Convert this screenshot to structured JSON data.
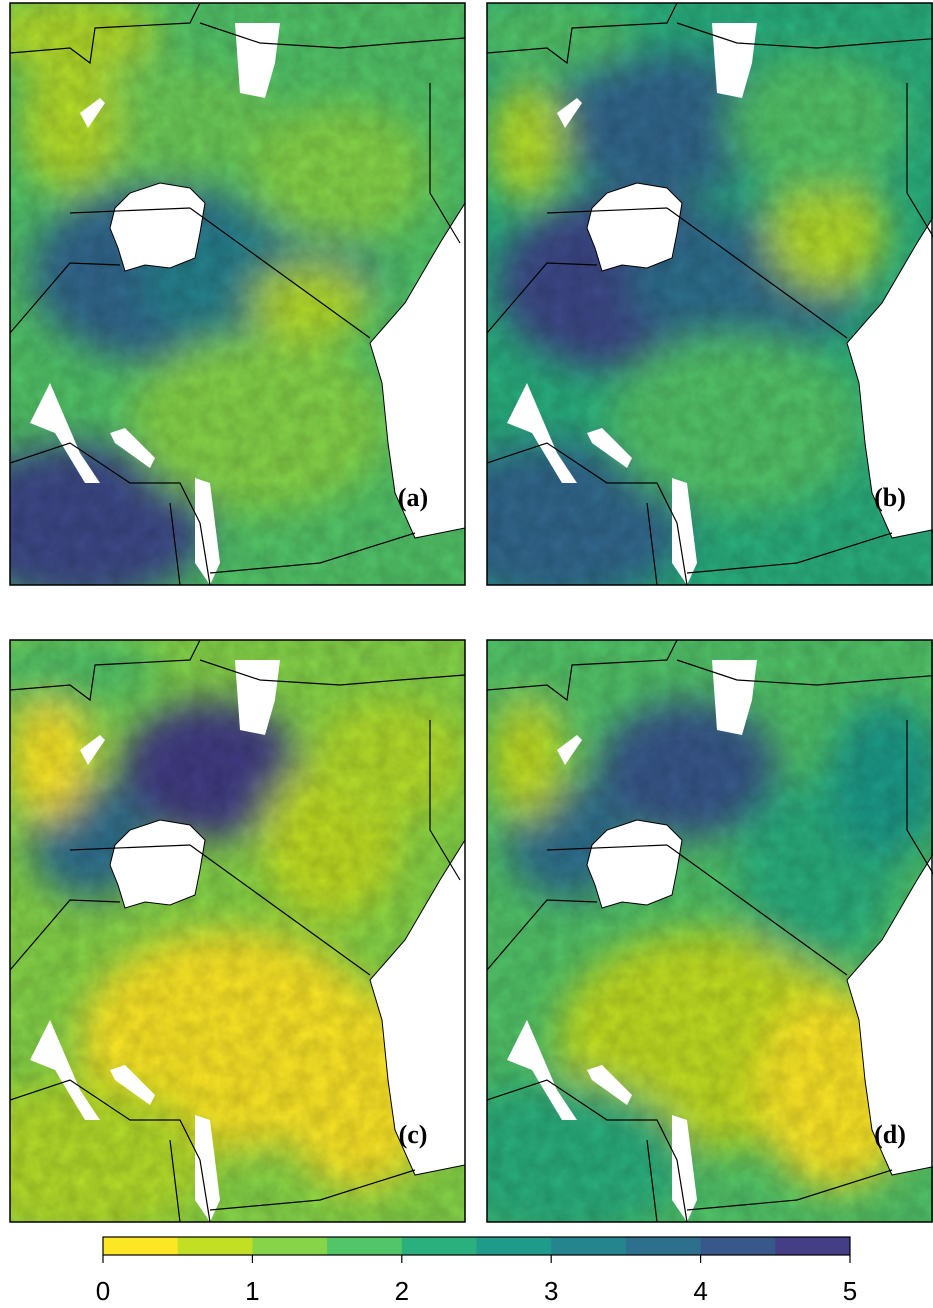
{
  "panels": [
    {
      "label": "(a)"
    },
    {
      "label": "(b)"
    },
    {
      "label": "(c)"
    },
    {
      "label": "(d)"
    }
  ],
  "colorbar": {
    "lim": [
      0,
      5
    ],
    "ticks": [
      0,
      1,
      2,
      3,
      4,
      5
    ],
    "colors": [
      "#fde725",
      "#c2df23",
      "#86d549",
      "#52c569",
      "#2ab07f",
      "#1e9b8a",
      "#25858e",
      "#2d708e",
      "#38588c",
      "#433e85"
    ]
  }
}
